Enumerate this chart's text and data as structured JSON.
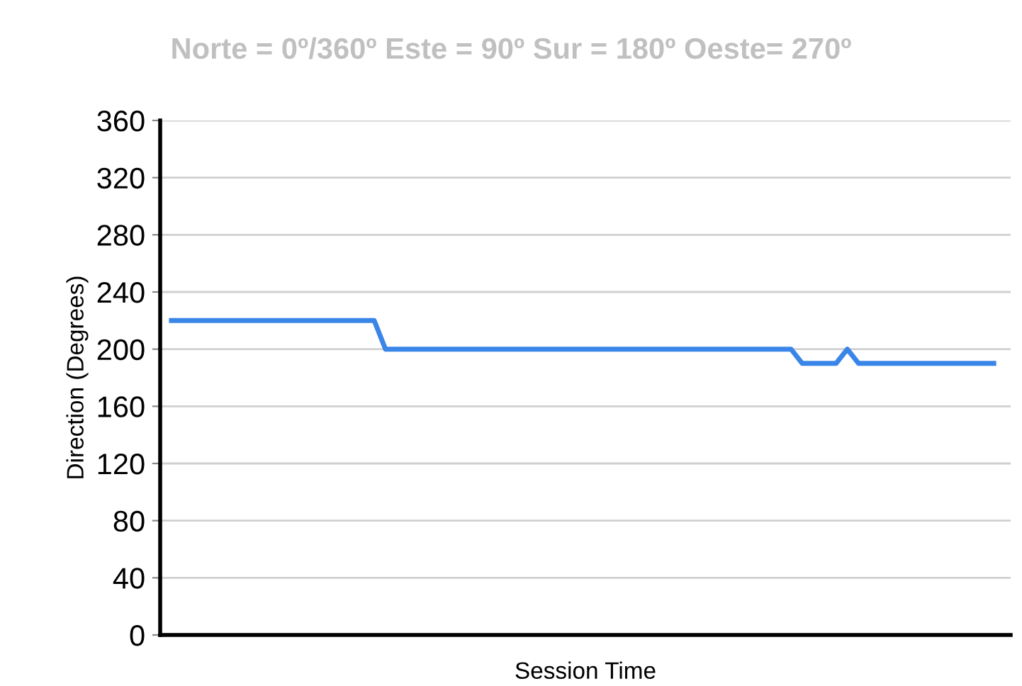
{
  "chart_data": {
    "type": "line",
    "subtitle": "Norte = 0º/360º Este = 90º Sur = 180º Oeste= 270º",
    "xlabel": "Session Time",
    "ylabel": "Direction (Degrees)",
    "categories": [
      null,
      null,
      null,
      null,
      null,
      null,
      null,
      null,
      null,
      null,
      null,
      null,
      null,
      null,
      null,
      null,
      null,
      null,
      null,
      null,
      null,
      null,
      null,
      null,
      null,
      null,
      null,
      null,
      null,
      null,
      null,
      null,
      null,
      null,
      null,
      null,
      null,
      null,
      null,
      null,
      null,
      null,
      null,
      null,
      null,
      null,
      null,
      null,
      null,
      null,
      null,
      null,
      null,
      null,
      null,
      null,
      null,
      null,
      null,
      null,
      null,
      null,
      null,
      null,
      null,
      null,
      null,
      null,
      null,
      null,
      null,
      null,
      null,
      null
    ],
    "series": [
      {
        "color": "#3a86e8",
        "values": [
          220,
          220,
          220,
          220,
          220,
          220,
          220,
          220,
          220,
          220,
          220,
          220,
          220,
          220,
          220,
          220,
          220,
          220,
          220,
          200,
          200,
          200,
          200,
          200,
          200,
          200,
          200,
          200,
          200,
          200,
          200,
          200,
          200,
          200,
          200,
          200,
          200,
          200,
          200,
          200,
          200,
          200,
          200,
          200,
          200,
          200,
          200,
          200,
          200,
          200,
          200,
          200,
          200,
          200,
          200,
          200,
          190,
          190,
          190,
          190,
          200,
          190,
          190,
          190,
          190,
          190,
          190,
          190,
          190,
          190,
          190,
          190,
          190,
          190
        ]
      }
    ],
    "ylim": [
      0,
      360
    ],
    "yticks": [
      0,
      40,
      80,
      120,
      160,
      200,
      240,
      280,
      320,
      360
    ],
    "grid": "y",
    "marker": "none",
    "line_style": "solid"
  }
}
